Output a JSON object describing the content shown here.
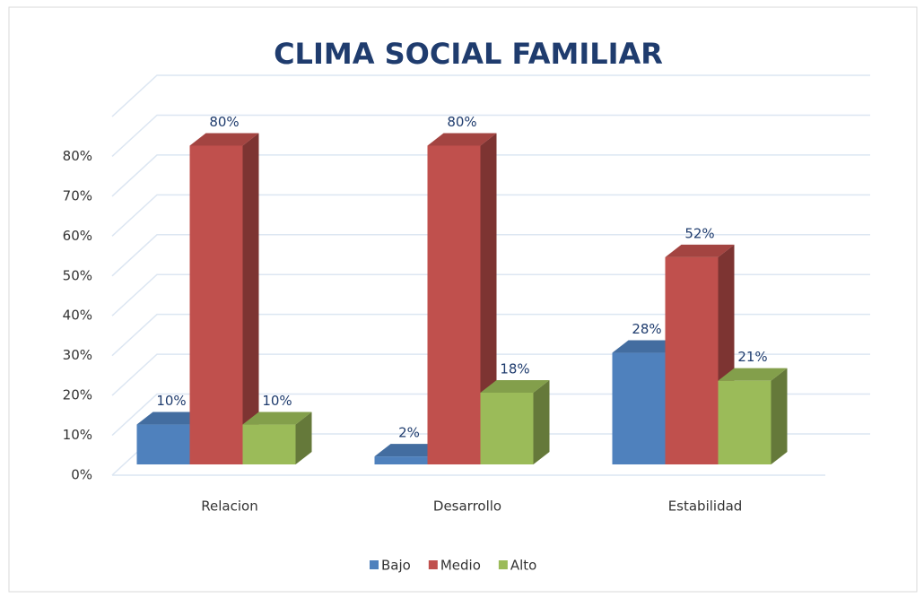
{
  "chart_data": {
    "type": "bar3d",
    "title": "CLIMA SOCIAL FAMILIAR",
    "categories": [
      "Relacion",
      "Desarrollo",
      "Estabilidad"
    ],
    "series": [
      {
        "name": "Bajo",
        "color": "#4f81bd",
        "values": [
          10,
          2,
          28
        ],
        "value_labels": [
          "10%",
          "2%",
          "28%"
        ]
      },
      {
        "name": "Medio",
        "color": "#c0504d",
        "values": [
          80,
          80,
          52
        ],
        "value_labels": [
          "80%",
          "80%",
          "52%"
        ]
      },
      {
        "name": "Alto",
        "color": "#9bbb59",
        "values": [
          10,
          18,
          21
        ],
        "value_labels": [
          "10%",
          "18%",
          "21%"
        ]
      }
    ],
    "ylim": [
      0,
      90
    ],
    "yticks": [
      {
        "value": 0,
        "label": "0%"
      },
      {
        "value": 10,
        "label": "10%"
      },
      {
        "value": 20,
        "label": "20%"
      },
      {
        "value": 30,
        "label": "30%"
      },
      {
        "value": 40,
        "label": "40%"
      },
      {
        "value": 50,
        "label": "50%"
      },
      {
        "value": 60,
        "label": "60%"
      },
      {
        "value": 70,
        "label": "70%"
      },
      {
        "value": 80,
        "label": "80%"
      }
    ],
    "grid": true,
    "legend": "bottom"
  }
}
